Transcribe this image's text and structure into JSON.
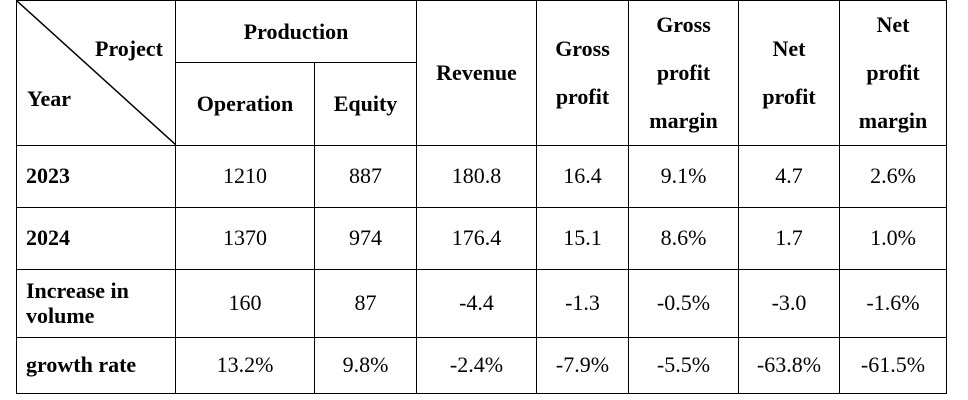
{
  "table": {
    "corner": {
      "top_label": "Project",
      "bottom_label": "Year"
    },
    "group_header": "Production",
    "sub_headers": [
      "Operation",
      "Equity"
    ],
    "headers": {
      "revenue": "Revenue",
      "gross_profit": [
        "Gross",
        "profit"
      ],
      "gross_profit_margin": [
        "Gross",
        "profit",
        "margin"
      ],
      "net_profit": [
        "Net",
        "profit"
      ],
      "net_profit_margin": [
        "Net",
        "profit",
        "margin"
      ]
    },
    "rows": [
      {
        "label": [
          "2023"
        ],
        "values": [
          "1210",
          "887",
          "180.8",
          "16.4",
          "9.1%",
          "4.7",
          "2.6%"
        ]
      },
      {
        "label": [
          "2024"
        ],
        "values": [
          "1370",
          "974",
          "176.4",
          "15.1",
          "8.6%",
          "1.7",
          "1.0%"
        ]
      },
      {
        "label": [
          "Increase in",
          "volume"
        ],
        "values": [
          "160",
          "87",
          "-4.4",
          "-1.3",
          "-0.5%",
          "-3.0",
          "-1.6%"
        ]
      },
      {
        "label": [
          "growth rate"
        ],
        "values": [
          "13.2%",
          "9.8%",
          "-2.4%",
          "-7.9%",
          "-5.5%",
          "-63.8%",
          "-61.5%"
        ]
      }
    ]
  }
}
